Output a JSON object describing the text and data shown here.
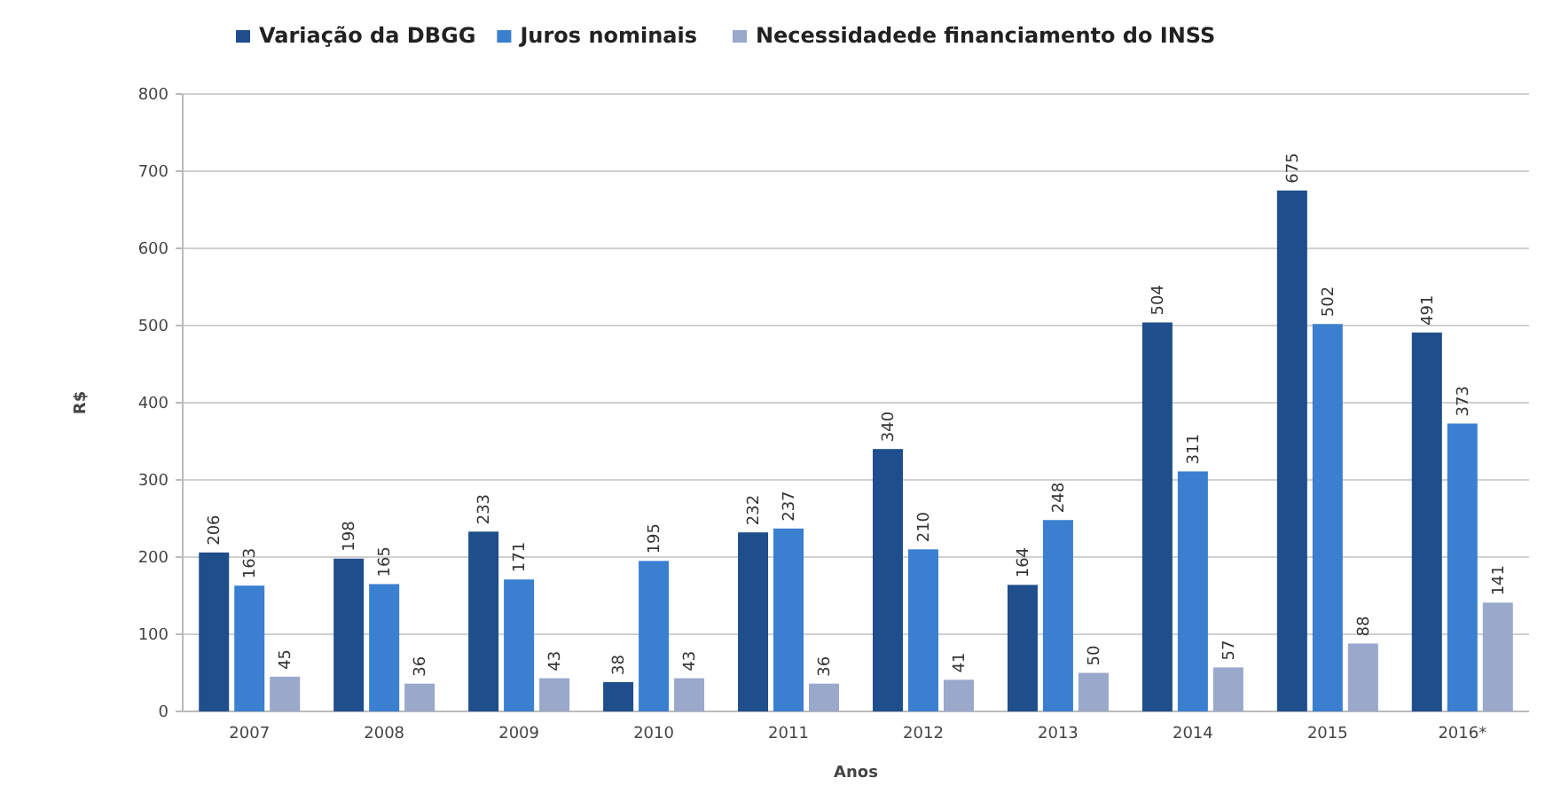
{
  "chart_data": {
    "type": "bar",
    "xlabel": "Anos",
    "ylabel": "R$",
    "categories": [
      "2007",
      "2008",
      "2009",
      "2010",
      "2011",
      "2012",
      "2013",
      "2014",
      "2015",
      "2016*"
    ],
    "series": [
      {
        "name": "Variação da DBGG",
        "color": "#1f4e8c",
        "values": [
          206,
          198,
          233,
          38,
          232,
          340,
          164,
          504,
          675,
          491
        ]
      },
      {
        "name": "Juros nominais",
        "color": "#3a7fd0",
        "values": [
          163,
          165,
          171,
          195,
          237,
          210,
          248,
          311,
          502,
          373
        ]
      },
      {
        "name": "Necessidadede financiamento do INSS",
        "color": "#9aa8cc",
        "values": [
          45,
          36,
          43,
          43,
          36,
          41,
          50,
          57,
          88,
          141
        ]
      }
    ],
    "ylim": [
      0,
      800
    ],
    "yticks": [
      0,
      100,
      200,
      300,
      400,
      500,
      600,
      700,
      800
    ],
    "grid": "y",
    "legend": "top left",
    "data_labels": true
  }
}
